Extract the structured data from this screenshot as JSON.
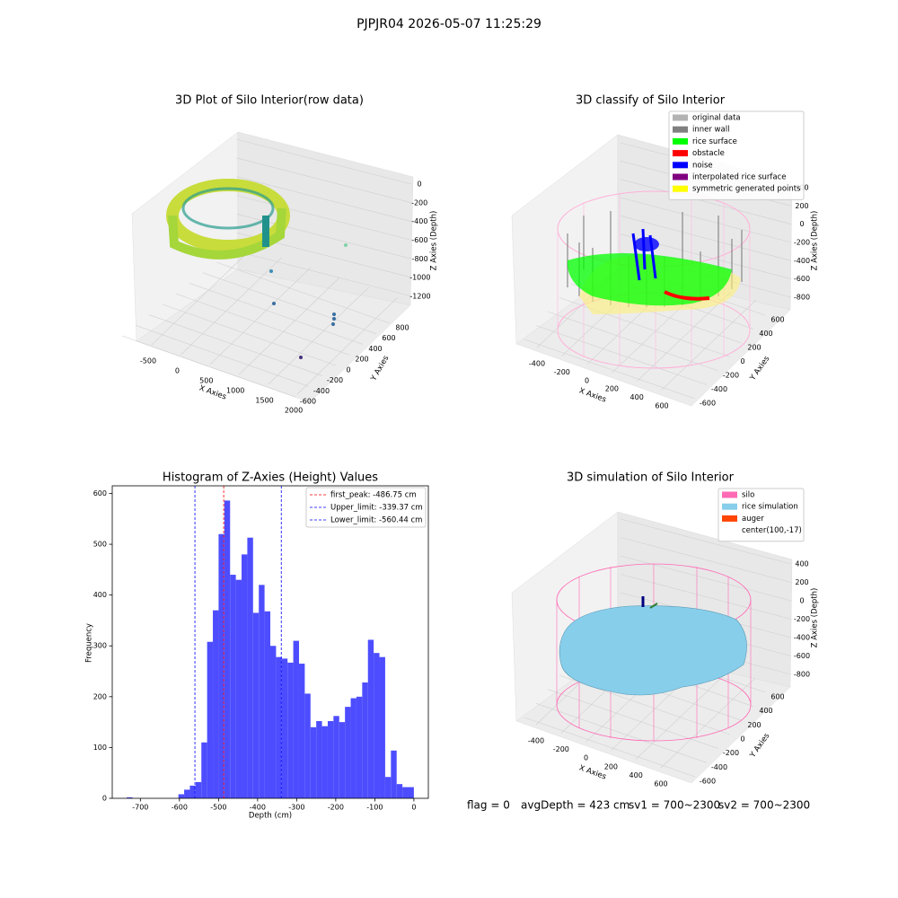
{
  "title": "PJPJR04 2026-05-07 11:25:29",
  "footer": [
    "flag = 0",
    "avgDepth = 423 cm",
    "sv1 = 700~2300",
    "sv2 = 700~2300"
  ],
  "chart_data": [
    {
      "type": "scatter3d",
      "title": "3D Plot of Silo Interior(row data)",
      "xlabel": "X Axies",
      "ylabel": "Y Axies",
      "zlabel": "Z Axies (Depth)",
      "xticks": [
        -500,
        0,
        500,
        1000,
        1500,
        2000
      ],
      "yticks": [
        -600,
        -400,
        -200,
        0,
        200,
        400,
        600,
        800
      ],
      "zticks": [
        0,
        -200,
        -400,
        -600,
        -800,
        -1000,
        -1200
      ]
    },
    {
      "type": "scatter3d",
      "title": "3D classify of Silo Interior",
      "xlabel": "X Axies",
      "ylabel": "Y Axies",
      "zlabel": "Z Axies (Depth)",
      "xticks": [
        -400,
        -200,
        0,
        200,
        400,
        600
      ],
      "yticks": [
        -600,
        -400,
        -200,
        0,
        200,
        400,
        600
      ],
      "zticks": [
        400,
        200,
        0,
        -200,
        -400,
        -600,
        -800
      ],
      "legend": [
        {
          "name": "original data",
          "color": "#b3b3b3"
        },
        {
          "name": "inner wall",
          "color": "#808080"
        },
        {
          "name": "rice surface",
          "color": "#00ff00"
        },
        {
          "name": "obstacle",
          "color": "#ff0000"
        },
        {
          "name": "noise",
          "color": "#0000ff"
        },
        {
          "name": "interpolated rice surface",
          "color": "#800080"
        },
        {
          "name": "symmetric generated points",
          "color": "#ffff00"
        }
      ]
    },
    {
      "type": "histogram",
      "title": "Histogram of Z-Axies (Height) Values",
      "xlabel": "Depth (cm)",
      "ylabel": "Frequency",
      "color": "#4d4dff",
      "bins": [
        -735,
        -720.3,
        -705.6,
        -690.9,
        -676.2,
        -661.5,
        -646.8,
        -632.1,
        -617.4,
        -602.7,
        -588,
        -573.3,
        -558.6,
        -543.9,
        -529.2,
        -514.5,
        -499.8,
        -485.1,
        -470.4,
        -455.7,
        -441,
        -426.3,
        -411.6,
        -396.9,
        -382.2,
        -367.5,
        -352.8,
        -338.1,
        -323.4,
        -308.7,
        -294,
        -279.3,
        -264.6,
        -249.9,
        -235.2,
        -220.5,
        -205.8,
        -191.1,
        -176.4,
        -161.7,
        -147,
        -132.3,
        -117.6,
        -102.9,
        -88.2,
        -73.5,
        -58.8,
        -44.1,
        -29.4,
        -14.7,
        0
      ],
      "values": [
        2,
        0,
        0,
        0,
        0,
        0,
        0,
        0,
        0,
        8,
        17,
        25,
        32,
        110,
        308,
        370,
        520,
        586,
        440,
        430,
        480,
        513,
        365,
        420,
        368,
        300,
        278,
        275,
        267,
        310,
        265,
        206,
        140,
        152,
        142,
        152,
        162,
        150,
        180,
        197,
        200,
        228,
        312,
        286,
        278,
        42,
        94,
        28,
        22,
        22
      ],
      "xlim": [
        -772,
        37
      ],
      "ylim": [
        0,
        615
      ],
      "xticks": [
        -700,
        -600,
        -500,
        -400,
        -300,
        -200,
        -100,
        0
      ],
      "yticks": [
        0,
        100,
        200,
        300,
        400,
        500,
        600
      ],
      "lines": [
        {
          "label": "first_peak: -486.75 cm",
          "value": -486.75,
          "color": "#ff0000"
        },
        {
          "label": "Upper_limit: -339.37 cm",
          "value": -339.37,
          "color": "#0000ff"
        },
        {
          "label": "Lower_limit: -560.44 cm",
          "value": -560.44,
          "color": "#0000ff"
        }
      ]
    },
    {
      "type": "surface3d",
      "title": "3D simulation of Silo Interior",
      "xlabel": "X Axies",
      "ylabel": "Y Axies",
      "zlabel": "Z Axies (Depth)",
      "xticks": [
        -400,
        -200,
        0,
        200,
        400,
        600
      ],
      "yticks": [
        -600,
        -400,
        -200,
        0,
        200,
        400,
        600
      ],
      "zticks": [
        400,
        200,
        0,
        -200,
        -400,
        -600,
        -800
      ],
      "legend": [
        {
          "name": "silo",
          "color": "#ff69b4"
        },
        {
          "name": "rice simulation",
          "color": "#87ceeb"
        },
        {
          "name": "auger",
          "color": "#ff4500"
        },
        {
          "name": "center(100,-17)"
        }
      ]
    }
  ]
}
